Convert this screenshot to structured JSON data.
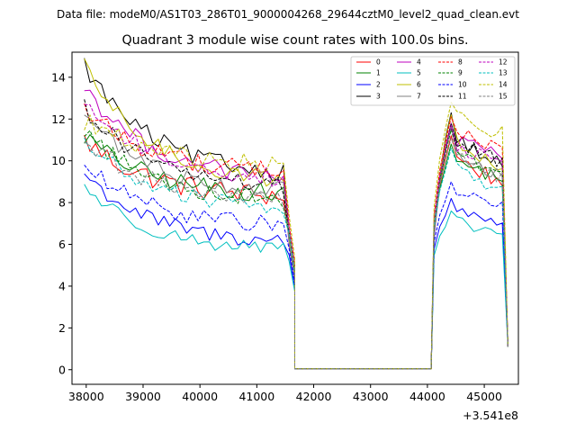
{
  "chart_data": {
    "type": "line",
    "suptitle": "Data file: modeM0/AS1T03_286T01_9000004268_29644cztM0_level2_quad_clean.evt",
    "title": "Quadrant 3 module wise count rates with 100.0s bins.",
    "xlabel": "",
    "ylabel": "",
    "x_offset_label": "+3.541e8",
    "xlim": [
      37750,
      45600
    ],
    "ylim": [
      -0.7,
      15.2
    ],
    "x_ticks": [
      38000,
      39000,
      40000,
      41000,
      42000,
      43000,
      44000,
      45000
    ],
    "x_tick_labels": [
      "38000",
      "39000",
      "40000",
      "41000",
      "42000",
      "43000",
      "44000",
      "45000"
    ],
    "y_ticks": [
      0,
      2,
      4,
      6,
      8,
      10,
      12,
      14
    ],
    "y_tick_labels": [
      "0",
      "2",
      "4",
      "6",
      "8",
      "10",
      "12",
      "14"
    ],
    "legend_position": "top-right",
    "x_segments": [
      {
        "start": 37967,
        "end": 41667,
        "step": 100
      },
      {
        "start": 44067,
        "end": 45367,
        "step": 100
      }
    ],
    "gap": {
      "from": 41667,
      "to": 44067,
      "value": 0.05
    },
    "series": [
      {
        "name": "0",
        "color": "#ff0000",
        "dash": "solid",
        "start": 11.0,
        "end": 8.2,
        "noise": 0.55,
        "p1": 6.4,
        "p2": 11.2,
        "p3": 8.8
      },
      {
        "name": "1",
        "color": "#008000",
        "dash": "solid",
        "start": 11.2,
        "end": 8.3,
        "noise": 0.45,
        "p1": 6.5,
        "p2": 10.8,
        "p3": 9.0
      },
      {
        "name": "2",
        "color": "#0000ff",
        "dash": "solid",
        "start": 9.4,
        "end": 6.0,
        "noise": 0.4,
        "p1": 5.5,
        "p2": 8.2,
        "p3": 7.0
      },
      {
        "name": "3",
        "color": "#000000",
        "dash": "solid",
        "start": 14.6,
        "end": 9.2,
        "noise": 0.45,
        "p1": 6.2,
        "p2": 12.3,
        "p3": 9.6
      },
      {
        "name": "4",
        "color": "#bf00bf",
        "dash": "solid",
        "start": 13.6,
        "end": 9.0,
        "noise": 0.45,
        "p1": 6.0,
        "p2": 11.8,
        "p3": 10.0
      },
      {
        "name": "5",
        "color": "#00bfbf",
        "dash": "solid",
        "start": 8.8,
        "end": 5.6,
        "noise": 0.35,
        "p1": 5.2,
        "p2": 7.6,
        "p3": 6.4
      },
      {
        "name": "6",
        "color": "#bfbf00",
        "dash": "solid",
        "start": 14.5,
        "end": 8.8,
        "noise": 0.4,
        "p1": 6.3,
        "p2": 12.2,
        "p3": 9.4
      },
      {
        "name": "7",
        "color": "#808080",
        "dash": "solid",
        "start": 12.3,
        "end": 8.4,
        "noise": 0.4,
        "p1": 6.1,
        "p2": 11.6,
        "p3": 9.0
      },
      {
        "name": "8",
        "color": "#ff0000",
        "dash": "dashed",
        "start": 12.5,
        "end": 9.4,
        "noise": 0.5,
        "p1": 7.0,
        "p2": 12.1,
        "p3": 10.4
      },
      {
        "name": "9",
        "color": "#008000",
        "dash": "dashed",
        "start": 11.5,
        "end": 8.0,
        "noise": 0.45,
        "p1": 6.6,
        "p2": 11.5,
        "p3": 9.2
      },
      {
        "name": "10",
        "color": "#0000ff",
        "dash": "dashed",
        "start": 9.8,
        "end": 6.8,
        "noise": 0.4,
        "p1": 5.8,
        "p2": 9.0,
        "p3": 7.8
      },
      {
        "name": "11",
        "color": "#000000",
        "dash": "dashed",
        "start": 12.6,
        "end": 8.6,
        "noise": 0.45,
        "p1": 6.6,
        "p2": 11.8,
        "p3": 9.8
      },
      {
        "name": "12",
        "color": "#bf00bf",
        "dash": "dashed",
        "start": 12.9,
        "end": 9.0,
        "noise": 0.45,
        "p1": 6.8,
        "p2": 11.7,
        "p3": 9.6
      },
      {
        "name": "13",
        "color": "#00bfbf",
        "dash": "dashed",
        "start": 11.0,
        "end": 7.6,
        "noise": 0.4,
        "p1": 6.5,
        "p2": 10.6,
        "p3": 8.4
      },
      {
        "name": "14",
        "color": "#bfbf00",
        "dash": "dashed",
        "start": 12.0,
        "end": 9.6,
        "noise": 0.55,
        "p1": 7.4,
        "p2": 12.8,
        "p3": 11.2
      },
      {
        "name": "15",
        "color": "#808080",
        "dash": "dashed",
        "start": 11.0,
        "end": 8.0,
        "noise": 0.45,
        "p1": 6.7,
        "p2": 11.1,
        "p3": 9.0
      }
    ]
  }
}
